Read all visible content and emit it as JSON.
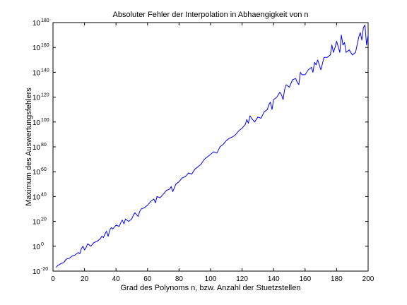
{
  "chart_data": {
    "type": "line",
    "title": "Absoluter Fehler der Interpolation in Abhaengigkeit von n",
    "xlabel": "Grad des Polynoms n, bzw. Anzahl der Stuetzstellen",
    "ylabel": "Maximum des Auswertungsfehlers",
    "xlim": [
      0,
      200
    ],
    "ylim_exponent": [
      -20,
      180
    ],
    "y_scale": "log",
    "grid": false,
    "legend": "none",
    "x_ticks": [
      "0",
      "20",
      "40",
      "60",
      "80",
      "100",
      "120",
      "140",
      "160",
      "180",
      "200"
    ],
    "y_tick_base": "10",
    "y_tick_exponents": [
      "-20",
      "0",
      "20",
      "40",
      "60",
      "80",
      "100",
      "120",
      "140",
      "160",
      "180"
    ],
    "series": [
      {
        "color": "#0000ff",
        "x": [
          2,
          3,
          5,
          7,
          8,
          9,
          10,
          12,
          14,
          16,
          17,
          18,
          19,
          20,
          21,
          22,
          23,
          24,
          26,
          28,
          30,
          31,
          32,
          33,
          34,
          35,
          36,
          37,
          38,
          40,
          42,
          43,
          44,
          45,
          46,
          48,
          50,
          51,
          52,
          54,
          55,
          56,
          58,
          60,
          62,
          64,
          65,
          66,
          68,
          70,
          72,
          74,
          75,
          76,
          78,
          80,
          82,
          84,
          86,
          88,
          90,
          92,
          94,
          96,
          98,
          100,
          102,
          104,
          106,
          108,
          110,
          112,
          114,
          116,
          118,
          120,
          122,
          123,
          124,
          125,
          126,
          128,
          130,
          132,
          134,
          136,
          137,
          138,
          139,
          140,
          142,
          144,
          145,
          146,
          147,
          148,
          150,
          152,
          154,
          155,
          156,
          157,
          158,
          160,
          162,
          164,
          165,
          166,
          167,
          168,
          170,
          172,
          174,
          176,
          177,
          178,
          179,
          180,
          182,
          183,
          184,
          185,
          186,
          188,
          190,
          192,
          194,
          195,
          196,
          197,
          198,
          199,
          200
        ],
        "y_exponent": [
          -17,
          -15.5,
          -14,
          -13,
          -11,
          -10,
          -10,
          -8,
          -7,
          -5,
          -6,
          -2,
          0,
          -3,
          -1,
          2,
          1,
          0,
          3,
          4,
          6,
          8,
          7,
          10,
          12,
          8,
          13,
          15,
          14,
          17,
          16,
          19,
          21,
          18,
          22,
          20,
          22,
          25,
          27,
          24,
          28,
          30,
          31,
          33,
          36,
          38,
          35,
          40,
          39,
          42,
          45,
          46,
          48,
          44,
          50,
          52,
          55,
          56,
          59,
          58,
          62,
          64,
          66,
          70,
          72,
          74,
          76,
          75,
          80,
          82,
          85,
          87,
          88,
          90,
          93,
          95,
          98,
          102,
          99,
          105,
          103,
          100,
          104,
          103,
          108,
          110,
          114,
          116,
          110,
          118,
          120,
          124,
          122,
          118,
          126,
          130,
          128,
          134,
          135,
          132,
          130,
          140,
          138,
          138,
          142,
          144,
          140,
          148,
          146,
          150,
          142,
          152,
          152,
          154,
          162,
          156,
          160,
          165,
          156,
          170,
          162,
          164,
          156,
          158,
          154,
          156,
          168,
          172,
          166,
          176,
          178,
          162,
          170
        ]
      }
    ]
  }
}
